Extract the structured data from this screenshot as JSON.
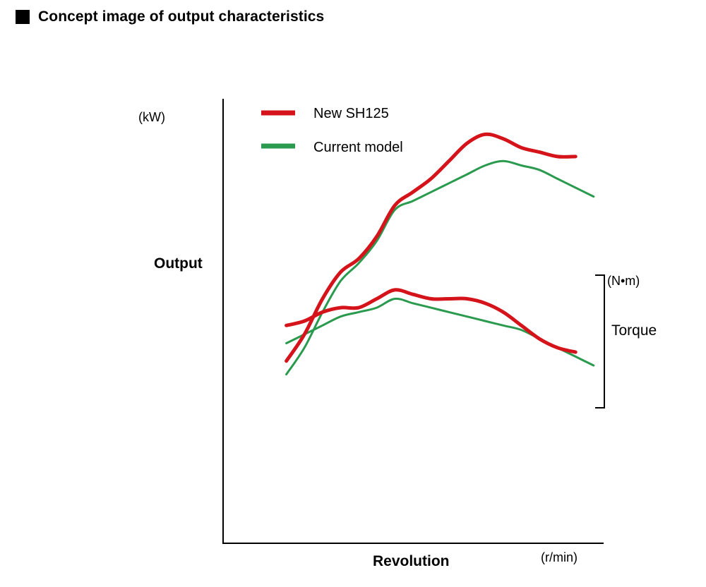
{
  "header": {
    "title": "Concept image of output characteristics",
    "icon": "black-square-icon"
  },
  "chart_data": {
    "type": "line",
    "title": "",
    "xlabel": "Revolution",
    "ylabel": "Output",
    "x_unit": "(r/min)",
    "y_unit_left": "(kW)",
    "y_unit_right": "(N•m)",
    "right_label": "Torque",
    "xlim": [
      0,
      100
    ],
    "ylim": [
      0,
      100
    ],
    "grid": false,
    "legend": {
      "placement": "top-left"
    },
    "colors": {
      "new": "#d4141a",
      "current": "#2a9a4e",
      "axis": "#000000"
    },
    "series": [
      {
        "name": "New SH125",
        "group": "output",
        "x": [
          14,
          18,
          22,
          26,
          30,
          34,
          38,
          42,
          46,
          50,
          54,
          58,
          62,
          66,
          70,
          74,
          78
        ],
        "values": [
          41,
          47,
          55,
          61,
          64,
          69,
          76,
          79,
          82,
          86,
          90,
          92,
          91,
          89,
          88,
          87,
          87
        ]
      },
      {
        "name": "Current model",
        "group": "output",
        "x": [
          14,
          18,
          22,
          26,
          30,
          34,
          38,
          42,
          46,
          50,
          54,
          58,
          62,
          66,
          70,
          74,
          78,
          82
        ],
        "values": [
          38,
          44,
          52,
          59,
          63,
          68,
          75,
          77,
          79,
          81,
          83,
          85,
          86,
          85,
          84,
          82,
          80,
          78
        ]
      },
      {
        "name": "New SH125",
        "group": "torque",
        "x": [
          14,
          18,
          22,
          26,
          30,
          34,
          38,
          42,
          46,
          50,
          54,
          58,
          62,
          66,
          70,
          74,
          78
        ],
        "values": [
          49,
          50,
          52,
          53,
          53,
          55,
          57,
          56,
          55,
          55,
          55,
          54,
          52,
          49,
          46,
          44,
          43
        ]
      },
      {
        "name": "Current model",
        "group": "torque",
        "x": [
          14,
          18,
          22,
          26,
          30,
          34,
          38,
          42,
          46,
          50,
          54,
          58,
          62,
          66,
          70,
          74,
          78,
          82
        ],
        "values": [
          45,
          47,
          49,
          51,
          52,
          53,
          55,
          54,
          53,
          52,
          51,
          50,
          49,
          48,
          46,
          44,
          42,
          40
        ]
      }
    ]
  }
}
